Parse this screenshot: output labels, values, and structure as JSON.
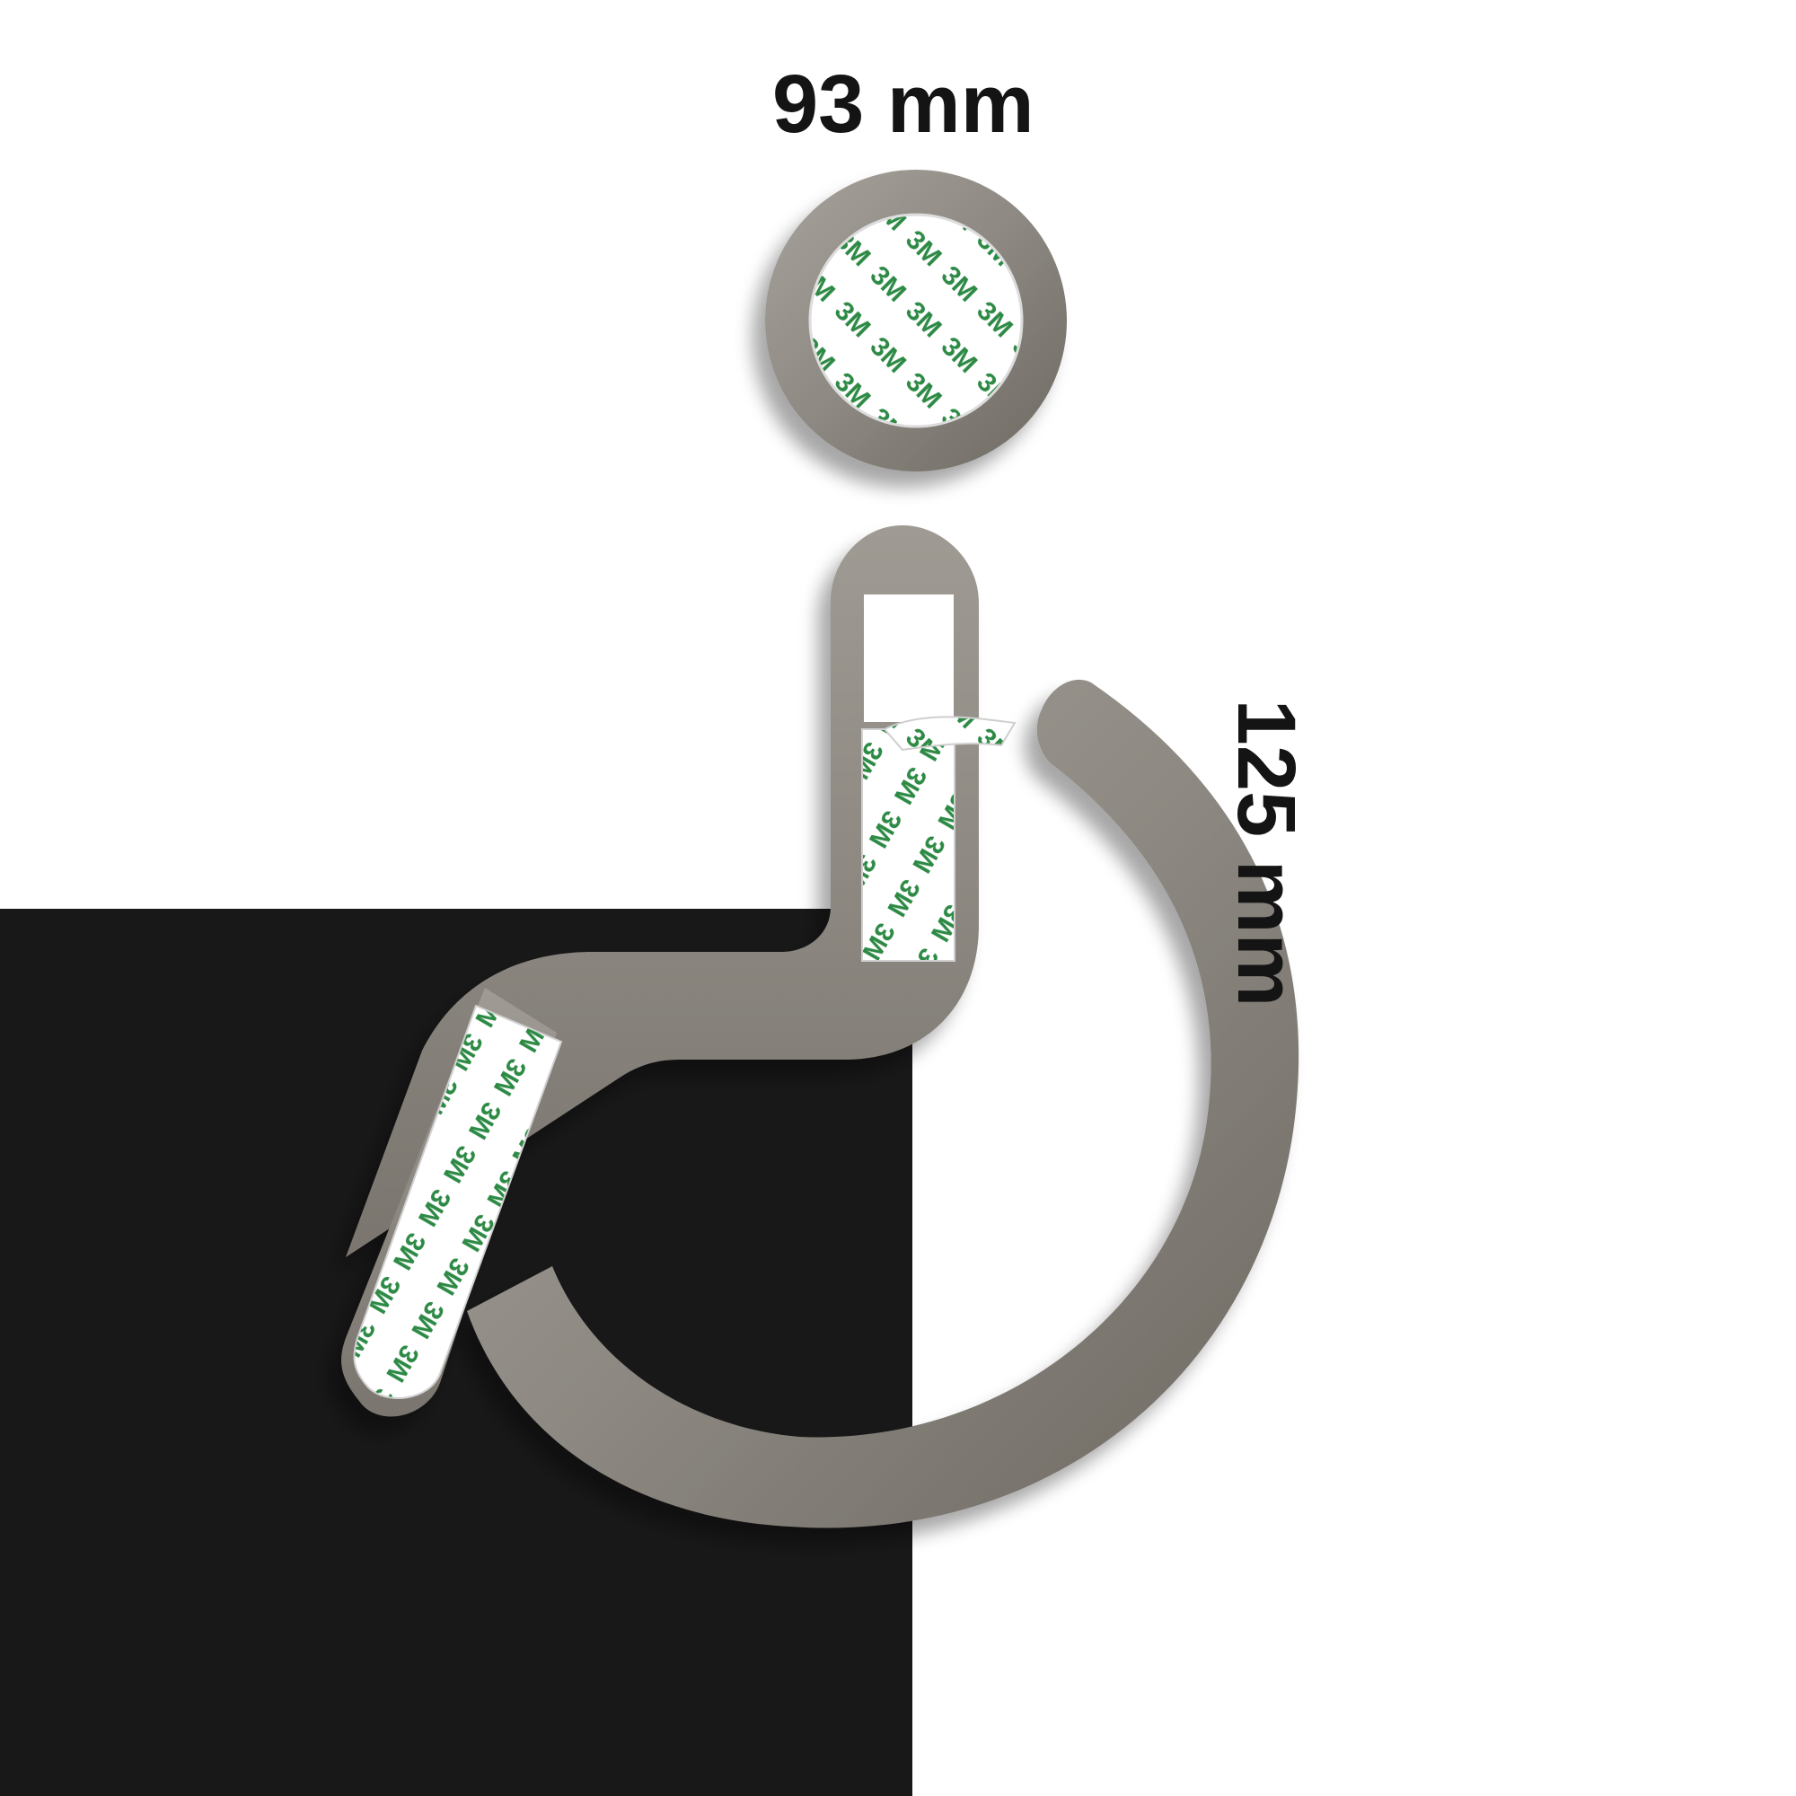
{
  "dimensions": {
    "width_label": "93 mm",
    "height_label": "125 mm"
  },
  "tape": {
    "brand_text": "3M",
    "print_color": "#2d8a45"
  },
  "colors": {
    "background_dark": "#181818",
    "background_light": "#ffffff",
    "steel_light": "#9c9890",
    "steel_dark": "#6f6a63",
    "tape_backing": "#ffffff"
  }
}
